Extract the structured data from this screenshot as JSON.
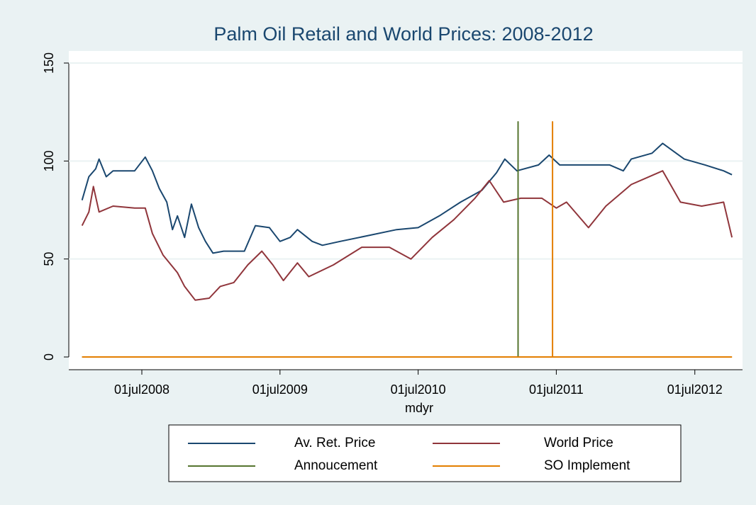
{
  "chart_data": {
    "type": "line",
    "title": "Palm Oil Retail and World Prices: 2008-2012",
    "xlabel": "mdyr",
    "xlim": [
      "2007-12-21",
      "2012-11-04"
    ],
    "xticks": [
      {
        "value": "2008-07-01",
        "label": "01jul2008"
      },
      {
        "value": "2009-07-01",
        "label": "01jul2009"
      },
      {
        "value": "2010-07-01",
        "label": "01jul2010"
      },
      {
        "value": "2011-07-01",
        "label": "01jul2011"
      },
      {
        "value": "2012-07-01",
        "label": "01jul2012"
      }
    ],
    "ylim": [
      0,
      150
    ],
    "yticks": [
      0,
      50,
      100,
      150
    ],
    "grid": true,
    "legend": "bottom",
    "series": [
      {
        "name": "Av. Ret. Price",
        "color": "#1a476f",
        "x": [
          "2008-01-25",
          "2008-02-12",
          "2008-03-01",
          "2008-03-10",
          "2008-03-29",
          "2008-04-16",
          "2008-06-12",
          "2008-07-10",
          "2008-07-29",
          "2008-08-16",
          "2008-09-05",
          "2008-09-20",
          "2008-10-03",
          "2008-10-22",
          "2008-11-09",
          "2008-11-28",
          "2008-12-16",
          "2009-01-05",
          "2009-02-02",
          "2009-03-29",
          "2009-04-27",
          "2009-06-03",
          "2009-07-01",
          "2009-07-28",
          "2009-08-16",
          "2009-09-24",
          "2009-10-21",
          "2009-12-07",
          "2010-02-20",
          "2010-05-05",
          "2010-07-01",
          "2010-08-26",
          "2010-10-21",
          "2010-12-16",
          "2011-01-24",
          "2011-02-15",
          "2011-03-19",
          "2011-05-15",
          "2011-06-12",
          "2011-07-10",
          "2011-11-19",
          "2011-12-25",
          "2012-01-15",
          "2012-03-10",
          "2012-04-07",
          "2012-06-03",
          "2012-07-28",
          "2012-09-15",
          "2012-10-07"
        ],
        "values": [
          80,
          92,
          96,
          101,
          92,
          95,
          95,
          102,
          95,
          86,
          79,
          65,
          72,
          61,
          78,
          66,
          59,
          53,
          54,
          54,
          67,
          66,
          59,
          61,
          65,
          59,
          57,
          59,
          62,
          65,
          66,
          72,
          79,
          85,
          94,
          101,
          95,
          98,
          103,
          98,
          98,
          95,
          101,
          104,
          109,
          101,
          98,
          95,
          93
        ]
      },
      {
        "name": "World Price",
        "color": "#90353b",
        "x": [
          "2008-01-25",
          "2008-02-12",
          "2008-02-24",
          "2008-03-10",
          "2008-04-16",
          "2008-06-12",
          "2008-07-10",
          "2008-07-29",
          "2008-08-26",
          "2008-10-03",
          "2008-10-22",
          "2008-11-19",
          "2008-12-26",
          "2009-01-24",
          "2009-03-01",
          "2009-04-07",
          "2009-05-14",
          "2009-06-12",
          "2009-07-10",
          "2009-08-16",
          "2009-09-15",
          "2009-11-19",
          "2010-02-02",
          "2010-04-16",
          "2010-06-12",
          "2010-08-07",
          "2010-10-03",
          "2010-11-28",
          "2011-01-05",
          "2011-02-12",
          "2011-03-29",
          "2011-05-24",
          "2011-07-01",
          "2011-07-28",
          "2011-09-24",
          "2011-11-09",
          "2012-01-15",
          "2012-04-07",
          "2012-05-24",
          "2012-07-19",
          "2012-09-15",
          "2012-10-07"
        ],
        "values": [
          67,
          74,
          87,
          74,
          77,
          76,
          76,
          63,
          52,
          43,
          36,
          29,
          30,
          36,
          38,
          47,
          54,
          47,
          39,
          48,
          41,
          47,
          56,
          56,
          50,
          61,
          70,
          81,
          90,
          79,
          81,
          81,
          76,
          79,
          66,
          77,
          88,
          95,
          79,
          77,
          79,
          61
        ]
      },
      {
        "name": "Annoucement",
        "color": "#55752f",
        "x": [
          "2008-01-25",
          "2011-03-22",
          "2011-03-22",
          "2011-03-22",
          "2012-10-07"
        ],
        "values": [
          0,
          0,
          120,
          0,
          0
        ]
      },
      {
        "name": "SO Implement",
        "color": "#e37e00",
        "x": [
          "2008-01-25",
          "2011-06-21",
          "2011-06-21",
          "2011-06-21",
          "2012-10-07"
        ],
        "values": [
          0,
          0,
          120,
          0,
          0
        ]
      }
    ]
  }
}
